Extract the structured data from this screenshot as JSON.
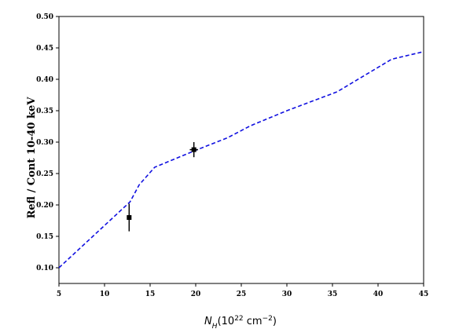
{
  "chart_data": {
    "type": "line",
    "xlabel": "N_H(10^22 cm^-2)",
    "ylabel": "Refl / Cont  10-40 keV",
    "xlim": [
      5,
      45
    ],
    "ylim": [
      0.075,
      0.5
    ],
    "x_ticks": [
      5,
      10,
      15,
      20,
      25,
      30,
      35,
      40,
      45
    ],
    "y_ticks": [
      0.1,
      0.15,
      0.2,
      0.25,
      0.3,
      0.35,
      0.4,
      0.45,
      0.5
    ],
    "x_tick_labels": [
      "5",
      "10",
      "15",
      "20",
      "25",
      "30",
      "35",
      "40",
      "45"
    ],
    "y_tick_labels": [
      "0.10",
      "0.15",
      "0.20",
      "0.25",
      "0.30",
      "0.35",
      "0.40",
      "0.45",
      "0.50"
    ],
    "grid": false,
    "series": [
      {
        "kind": "line",
        "style": "dashed",
        "color": "#1010e0",
        "x": [
          5.0,
          12.8,
          13.8,
          15.5,
          20.0,
          23.5,
          26.0,
          30.0,
          35.5,
          41.5,
          45.0
        ],
        "y": [
          0.1,
          0.205,
          0.232,
          0.26,
          0.287,
          0.307,
          0.326,
          0.35,
          0.38,
          0.432,
          0.444
        ]
      },
      {
        "kind": "points",
        "color": "#000000",
        "x": [
          12.7,
          19.8
        ],
        "y": [
          0.18,
          0.288
        ],
        "yerr": [
          0.022,
          0.012
        ],
        "xerr": [
          0.15,
          0.45
        ]
      }
    ]
  }
}
